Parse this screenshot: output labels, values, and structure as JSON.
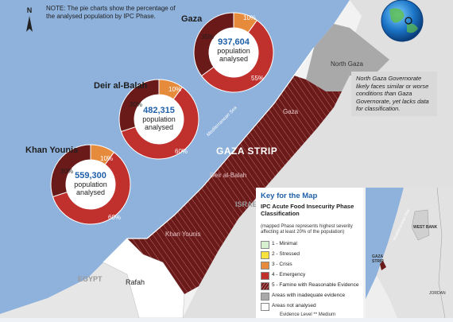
{
  "note": "NOTE: The pie charts show the percentage of the analysed population by IPC Phase.",
  "north_label": "N",
  "colors": {
    "sea": "#8fb2dc",
    "phase4": "#c0302d",
    "phase5": "#6b1a1a",
    "phase3": "#e68a3c",
    "land": "#f2f2f2",
    "inadequate": "#a9a9a9",
    "accent": "#1f5fa8"
  },
  "pies": [
    {
      "name": "Gaza",
      "population": "937,604",
      "caption": "population analysed",
      "phases": [
        {
          "phase": "3",
          "pct": 10,
          "label": "10%"
        },
        {
          "phase": "4",
          "pct": 55,
          "label": "55%"
        },
        {
          "phase": "5",
          "pct": 35,
          "label": "35%"
        }
      ]
    },
    {
      "name": "Deir al-Balah",
      "population": "482,315",
      "caption": "population analysed",
      "phases": [
        {
          "phase": "3",
          "pct": 10,
          "label": "10%"
        },
        {
          "phase": "4",
          "pct": 60,
          "label": "60%"
        },
        {
          "phase": "5",
          "pct": 30,
          "label": "30%"
        }
      ]
    },
    {
      "name": "Khan Younis",
      "population": "559,300",
      "caption": "population analysed",
      "phases": [
        {
          "phase": "3",
          "pct": 10,
          "label": "10%"
        },
        {
          "phase": "4",
          "pct": 60,
          "label": "60%"
        },
        {
          "phase": "5",
          "pct": 30,
          "label": "30%"
        }
      ]
    }
  ],
  "map_labels": {
    "strip_title": "GAZA STRIP",
    "north_gaza": "North Gaza",
    "gaza": "Gaza",
    "deir_al_balah": "Deir al-Balah",
    "khan_younis": "Khan Younis",
    "rafah": "Rafah",
    "israel": "ISRAEL",
    "egypt": "EGYPT",
    "sea": "Mediterranean Sea"
  },
  "callout": "North Gaza Governorate likely faces similar or worse conditions than Gaza Governorate, yet lacks data for classification.",
  "legend": {
    "title": "Key for the Map",
    "subtitle": "IPC Acute Food Insecurity Phase Classification",
    "note": "(mapped Phase represents highest severity affecting at least 20% of the population)",
    "items": [
      {
        "label": "1 - Minimal",
        "color": "#d6f0d0"
      },
      {
        "label": "2 - Stressed",
        "color": "#f7e33c"
      },
      {
        "label": "3 - Crisis",
        "color": "#e68a3c"
      },
      {
        "label": "4 - Emergency",
        "color": "#c0302d"
      },
      {
        "label": "5 - Famine with Reasonable Evidence",
        "color": "#6b1a1a"
      },
      {
        "label": "Areas with inadequate evidence",
        "color": "#a9a9a9"
      },
      {
        "label": "Areas not analysed",
        "color": "#ffffff"
      }
    ],
    "evidence": "Evidence Level  ** Medium"
  },
  "inset": {
    "sea": "Mediterranean Sea",
    "west_bank": "WEST BANK",
    "gaza_strip": "GAZA STRIP",
    "jordan": "JORDAN"
  }
}
